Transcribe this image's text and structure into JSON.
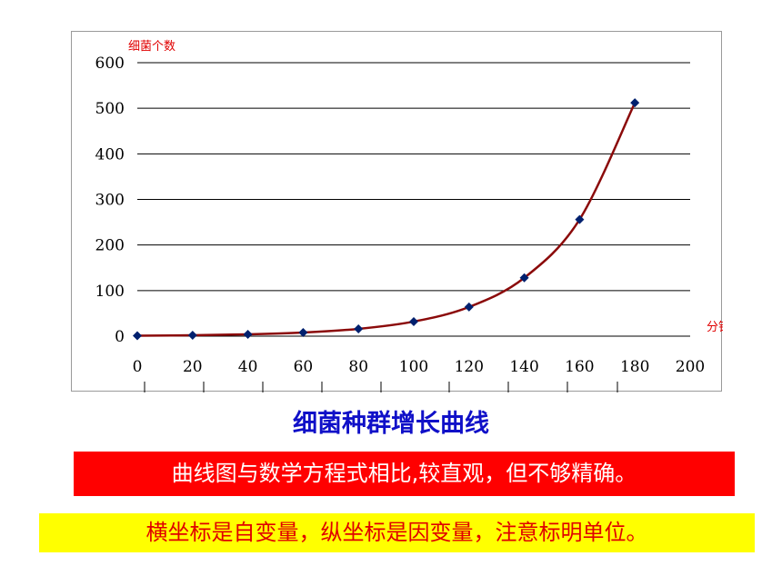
{
  "chart_data": {
    "type": "line",
    "ylabel": "细菌个数",
    "xlabel": "分钟",
    "x": [
      0,
      20,
      40,
      60,
      80,
      100,
      120,
      140,
      160,
      180
    ],
    "series": [
      {
        "values": [
          1,
          2,
          4,
          8,
          16,
          32,
          64,
          128,
          256,
          512
        ]
      }
    ],
    "xlim": [
      0,
      200
    ],
    "ylim": [
      0,
      600
    ],
    "xticks": [
      "0",
      "20",
      "40",
      "60",
      "80",
      "100",
      "120",
      "140",
      "160",
      "180",
      "200"
    ],
    "yticks": [
      "0",
      "100",
      "200",
      "300",
      "400",
      "500",
      "600"
    ],
    "grid": "horizontal",
    "colors": {
      "line": "#8b0a0a",
      "marker": "#00206e",
      "axis_title": "#e00000"
    }
  },
  "caption": "细菌种群增长曲线",
  "notes": {
    "note1": "曲线图与数学方程式相比,较直观，但不够精确。",
    "note2": "横坐标是自变量，纵坐标是因变量，注意标明单位。"
  }
}
